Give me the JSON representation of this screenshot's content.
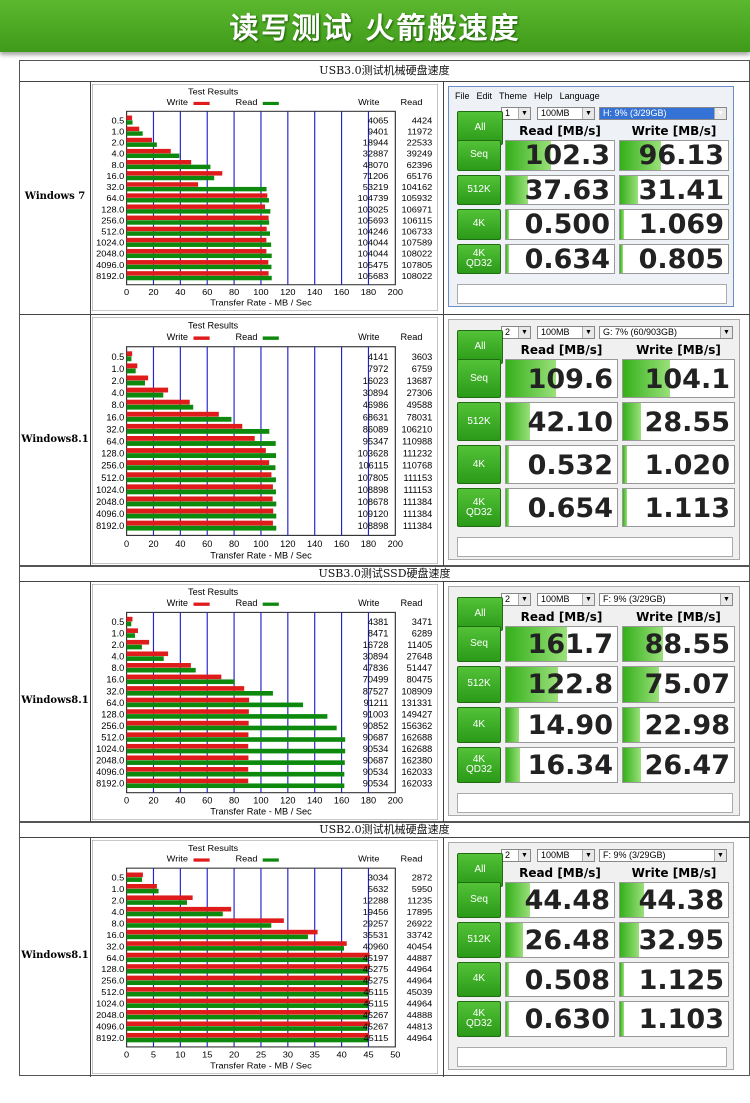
{
  "banner": {
    "title": "读写测试  火箭般速度"
  },
  "colors": {
    "write": "#e01b1b",
    "read": "#0d8a0d",
    "button": "#2fa01c",
    "banner": "#4aa622"
  },
  "sections": [
    {
      "title": "USB3.0测试机械硬盘速度",
      "rows": [
        {
          "os": "Windows 7",
          "chart_data": {
            "type": "bar",
            "title": "Test Results",
            "xlabel": "Transfer Rate - MB / Sec",
            "legend": [
              "Write",
              "Read"
            ],
            "col_headers": [
              "Write",
              "Read"
            ],
            "xlim": [
              0,
              200
            ],
            "xticks": [
              "0",
              "20",
              "40",
              "60",
              "80",
              "100",
              "120",
              "140",
              "160",
              "180",
              "200"
            ],
            "categories": [
              "0.5",
              "1.0",
              "2.0",
              "4.0",
              "8.0",
              "16.0",
              "32.0",
              "64.0",
              "128.0",
              "256.0",
              "512.0",
              "1024.0",
              "2048.0",
              "4096.0",
              "8192.0"
            ],
            "series": [
              {
                "name": "Write",
                "values": [
                  4065,
                  9401,
                  18944,
                  32887,
                  48070,
                  71206,
                  53219,
                  104739,
                  103025,
                  105693,
                  104246,
                  104044,
                  104044,
                  105475,
                  105683
                ]
              },
              {
                "name": "Read",
                "values": [
                  4424,
                  11972,
                  22533,
                  39249,
                  62396,
                  65176,
                  104162,
                  105932,
                  106971,
                  106115,
                  106733,
                  107589,
                  108022,
                  107805,
                  108022
                ]
              }
            ]
          },
          "cdm": {
            "menu": [
              "File",
              "Edit",
              "Theme",
              "Help",
              "Language"
            ],
            "count": "1",
            "size": "100MB",
            "drive": "H: 9% (3/29GB)",
            "headers": [
              "Read [MB/s]",
              "Write [MB/s]"
            ],
            "all_label": "All",
            "tests": [
              {
                "label": "Seq",
                "read": "102.3",
                "write": "96.13",
                "rfill": 0.42,
                "wfill": 0.38
              },
              {
                "label": "512K",
                "read": "37.63",
                "write": "31.41",
                "rfill": 0.2,
                "wfill": 0.17
              },
              {
                "label": "4K",
                "read": "0.500",
                "write": "1.069",
                "rfill": 0.03,
                "wfill": 0.04
              },
              {
                "label": "4K\nQD32",
                "read": "0.634",
                "write": "0.805",
                "rfill": 0.03,
                "wfill": 0.03
              }
            ]
          }
        },
        {
          "os": "Windows8.1",
          "chart_data": {
            "type": "bar",
            "title": "Test Results",
            "xlabel": "Transfer Rate - MB / Sec",
            "legend": [
              "Write",
              "Read"
            ],
            "col_headers": [
              "Write",
              "Read"
            ],
            "xlim": [
              0,
              200
            ],
            "xticks": [
              "0",
              "20",
              "40",
              "60",
              "80",
              "100",
              "120",
              "140",
              "160",
              "180",
              "200"
            ],
            "categories": [
              "0.5",
              "1.0",
              "2.0",
              "4.0",
              "8.0",
              "16.0",
              "32.0",
              "64.0",
              "128.0",
              "256.0",
              "512.0",
              "1024.0",
              "2048.0",
              "4096.0",
              "8192.0"
            ],
            "series": [
              {
                "name": "Write",
                "values": [
                  4141,
                  7972,
                  16023,
                  30894,
                  46986,
                  68631,
                  86089,
                  95347,
                  103628,
                  106115,
                  107805,
                  108898,
                  108678,
                  109120,
                  108898
                ]
              },
              {
                "name": "Read",
                "values": [
                  3603,
                  6759,
                  13687,
                  27306,
                  49588,
                  78031,
                  106210,
                  110988,
                  111232,
                  110768,
                  111153,
                  111153,
                  111384,
                  111384,
                  111384
                ]
              }
            ]
          },
          "cdm": {
            "count": "2",
            "size": "100MB",
            "drive": "G: 7% (60/903GB)",
            "headers": [
              "Read [MB/s]",
              "Write [MB/s]"
            ],
            "all_label": "All",
            "tests": [
              {
                "label": "Seq",
                "read": "109.6",
                "write": "104.1",
                "rfill": 0.45,
                "wfill": 0.42
              },
              {
                "label": "512K",
                "read": "42.10",
                "write": "28.55",
                "rfill": 0.22,
                "wfill": 0.16
              },
              {
                "label": "4K",
                "read": "0.532",
                "write": "1.020",
                "rfill": 0.03,
                "wfill": 0.04
              },
              {
                "label": "4K\nQD32",
                "read": "0.654",
                "write": "1.113",
                "rfill": 0.03,
                "wfill": 0.04
              }
            ]
          }
        }
      ]
    },
    {
      "title": "USB3.0测试SSD硬盘速度",
      "rows": [
        {
          "os": "Windows8.1",
          "chart_data": {
            "type": "bar",
            "title": "Test Results",
            "xlabel": "Transfer Rate - MB / Sec",
            "legend": [
              "Write",
              "Read"
            ],
            "col_headers": [
              "Write",
              "Read"
            ],
            "xlim": [
              0,
              200
            ],
            "xticks": [
              "0",
              "20",
              "40",
              "60",
              "80",
              "100",
              "120",
              "140",
              "160",
              "180",
              "200"
            ],
            "categories": [
              "0.5",
              "1.0",
              "2.0",
              "4.0",
              "8.0",
              "16.0",
              "32.0",
              "64.0",
              "128.0",
              "256.0",
              "512.0",
              "1024.0",
              "2048.0",
              "4096.0",
              "8192.0"
            ],
            "series": [
              {
                "name": "Write",
                "values": [
                  4381,
                  8471,
                  16728,
                  30894,
                  47836,
                  70499,
                  87527,
                  91211,
                  91003,
                  90852,
                  90687,
                  90534,
                  90687,
                  90534,
                  90534
                ]
              },
              {
                "name": "Read",
                "values": [
                  3471,
                  6289,
                  11405,
                  27648,
                  51447,
                  80475,
                  108909,
                  131331,
                  149427,
                  156362,
                  162688,
                  162688,
                  162380,
                  162033,
                  162033
                ]
              }
            ]
          },
          "cdm": {
            "count": "2",
            "size": "100MB",
            "drive": "F: 9% (3/29GB)",
            "headers": [
              "Read [MB/s]",
              "Write [MB/s]"
            ],
            "all_label": "All",
            "tests": [
              {
                "label": "Seq",
                "read": "161.7",
                "write": "88.55",
                "rfill": 0.55,
                "wfill": 0.36
              },
              {
                "label": "512K",
                "read": "122.8",
                "write": "75.07",
                "rfill": 0.47,
                "wfill": 0.32
              },
              {
                "label": "4K",
                "read": "14.90",
                "write": "22.98",
                "rfill": 0.12,
                "wfill": 0.15
              },
              {
                "label": "4K\nQD32",
                "read": "16.34",
                "write": "26.47",
                "rfill": 0.13,
                "wfill": 0.16
              }
            ]
          }
        }
      ]
    },
    {
      "title": "USB2.0测试机械硬盘速度",
      "rows": [
        {
          "os": "Windows8.1",
          "chart_data": {
            "type": "bar",
            "title": "Test Results",
            "xlabel": "Transfer Rate - MB / Sec",
            "legend": [
              "Write",
              "Read"
            ],
            "col_headers": [
              "Write",
              "Read"
            ],
            "xlim": [
              0,
              50
            ],
            "xticks": [
              "0",
              "5",
              "10",
              "15",
              "20",
              "25",
              "30",
              "35",
              "40",
              "45",
              "50"
            ],
            "categories": [
              "0.5",
              "1.0",
              "2.0",
              "4.0",
              "8.0",
              "16.0",
              "32.0",
              "64.0",
              "128.0",
              "256.0",
              "512.0",
              "1024.0",
              "2048.0",
              "4096.0",
              "8192.0"
            ],
            "series": [
              {
                "name": "Write",
                "values": [
                  3034,
                  5632,
                  12288,
                  19456,
                  29257,
                  35531,
                  40960,
                  45197,
                  45275,
                  45275,
                  45115,
                  45115,
                  45267,
                  45267,
                  45115
                ]
              },
              {
                "name": "Read",
                "values": [
                  2872,
                  5950,
                  11235,
                  17895,
                  26922,
                  33742,
                  40454,
                  44887,
                  44964,
                  44964,
                  45039,
                  44964,
                  44888,
                  44813,
                  44964
                ]
              }
            ]
          },
          "cdm": {
            "count": "2",
            "size": "100MB",
            "drive": "F: 9% (3/29GB)",
            "headers": [
              "Read [MB/s]",
              "Write [MB/s]"
            ],
            "all_label": "All",
            "tests": [
              {
                "label": "Seq",
                "read": "44.48",
                "write": "44.38",
                "rfill": 0.22,
                "wfill": 0.22
              },
              {
                "label": "512K",
                "read": "26.48",
                "write": "32.95",
                "rfill": 0.16,
                "wfill": 0.18
              },
              {
                "label": "4K",
                "read": "0.508",
                "write": "1.125",
                "rfill": 0.03,
                "wfill": 0.04
              },
              {
                "label": "4K\nQD32",
                "read": "0.630",
                "write": "1.103",
                "rfill": 0.03,
                "wfill": 0.04
              }
            ]
          }
        }
      ]
    }
  ]
}
